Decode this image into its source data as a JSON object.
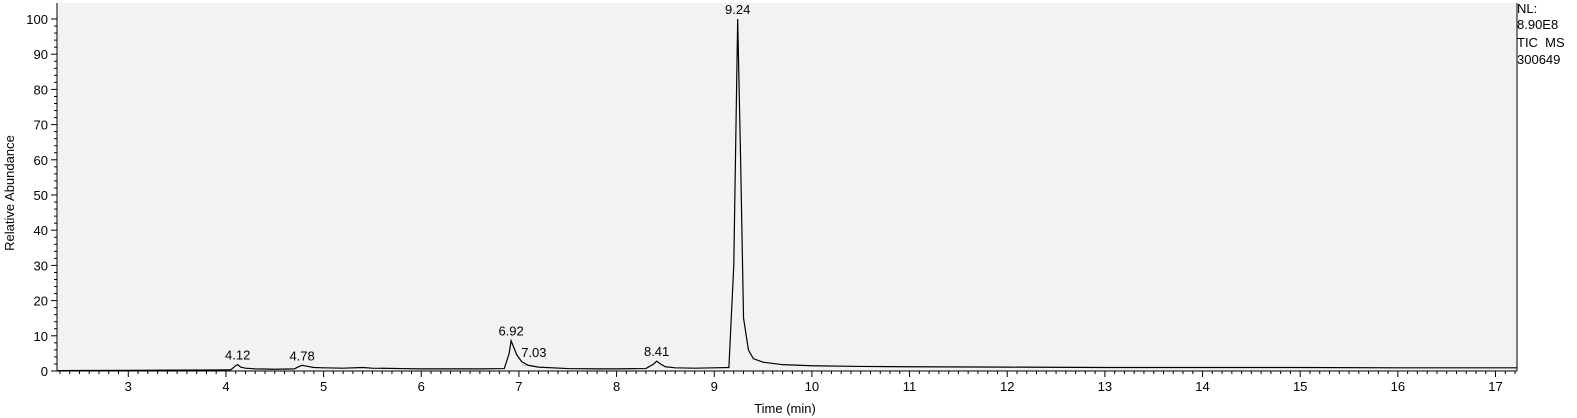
{
  "chart_data": {
    "type": "line",
    "title": "",
    "xlabel": "Time (min)",
    "ylabel": "Relative Abundance",
    "xlim": [
      2.27,
      17.22
    ],
    "ylim": [
      0,
      100
    ],
    "x_ticks": [
      3,
      4,
      5,
      6,
      7,
      8,
      9,
      10,
      11,
      12,
      13,
      14,
      15,
      16,
      17
    ],
    "y_ticks": [
      0,
      10,
      20,
      30,
      40,
      50,
      60,
      70,
      80,
      90,
      100
    ],
    "grid": false,
    "background_color": "#f2f2f2",
    "line_color": "#000000",
    "baseline_fill_color": "#4caf50",
    "info": {
      "nl_label": "NL:",
      "nl_value": "8.90E8",
      "scan_filter": "TIC  MS",
      "sample": "300649"
    },
    "peaks": [
      {
        "x": 4.12,
        "y": 1.8,
        "label": "4.12"
      },
      {
        "x": 4.78,
        "y": 1.6,
        "label": "4.78"
      },
      {
        "x": 6.92,
        "y": 8.6,
        "label": "6.92"
      },
      {
        "x": 7.03,
        "y": 2.6,
        "label": "7.03"
      },
      {
        "x": 8.41,
        "y": 2.8,
        "label": "8.41"
      },
      {
        "x": 9.24,
        "y": 100,
        "label": "9.24"
      }
    ],
    "series": [
      {
        "values": [
          [
            2.27,
            0.1
          ],
          [
            2.5,
            0.15
          ],
          [
            3.0,
            0.2
          ],
          [
            3.5,
            0.25
          ],
          [
            3.9,
            0.3
          ],
          [
            4.05,
            0.35
          ],
          [
            4.1,
            1.5
          ],
          [
            4.12,
            1.8
          ],
          [
            4.15,
            1.1
          ],
          [
            4.2,
            0.8
          ],
          [
            4.3,
            0.6
          ],
          [
            4.5,
            0.5
          ],
          [
            4.7,
            0.6
          ],
          [
            4.75,
            1.3
          ],
          [
            4.78,
            1.6
          ],
          [
            4.82,
            1.4
          ],
          [
            4.9,
            1.0
          ],
          [
            5.0,
            0.9
          ],
          [
            5.2,
            0.8
          ],
          [
            5.4,
            1.0
          ],
          [
            5.5,
            0.8
          ],
          [
            5.8,
            0.7
          ],
          [
            6.0,
            0.6
          ],
          [
            6.3,
            0.6
          ],
          [
            6.6,
            0.6
          ],
          [
            6.85,
            0.7
          ],
          [
            6.9,
            5.0
          ],
          [
            6.92,
            8.6
          ],
          [
            6.95,
            6.5
          ],
          [
            6.98,
            4.5
          ],
          [
            7.03,
            2.6
          ],
          [
            7.1,
            1.6
          ],
          [
            7.2,
            1.1
          ],
          [
            7.5,
            0.7
          ],
          [
            7.8,
            0.6
          ],
          [
            8.0,
            0.6
          ],
          [
            8.3,
            0.7
          ],
          [
            8.38,
            2.0
          ],
          [
            8.41,
            2.8
          ],
          [
            8.45,
            2.0
          ],
          [
            8.5,
            1.2
          ],
          [
            8.6,
            0.9
          ],
          [
            8.8,
            0.8
          ],
          [
            9.0,
            0.9
          ],
          [
            9.15,
            1.0
          ],
          [
            9.2,
            30.0
          ],
          [
            9.24,
            100
          ],
          [
            9.27,
            60.0
          ],
          [
            9.3,
            15.0
          ],
          [
            9.35,
            6.0
          ],
          [
            9.4,
            3.5
          ],
          [
            9.5,
            2.5
          ],
          [
            9.7,
            1.8
          ],
          [
            10.0,
            1.5
          ],
          [
            10.5,
            1.3
          ],
          [
            11.0,
            1.2
          ],
          [
            12.0,
            1.1
          ],
          [
            13.0,
            1.0
          ],
          [
            14.0,
            1.0
          ],
          [
            15.0,
            1.0
          ],
          [
            16.0,
            0.9
          ],
          [
            17.0,
            0.9
          ],
          [
            17.22,
            0.9
          ]
        ]
      }
    ]
  }
}
